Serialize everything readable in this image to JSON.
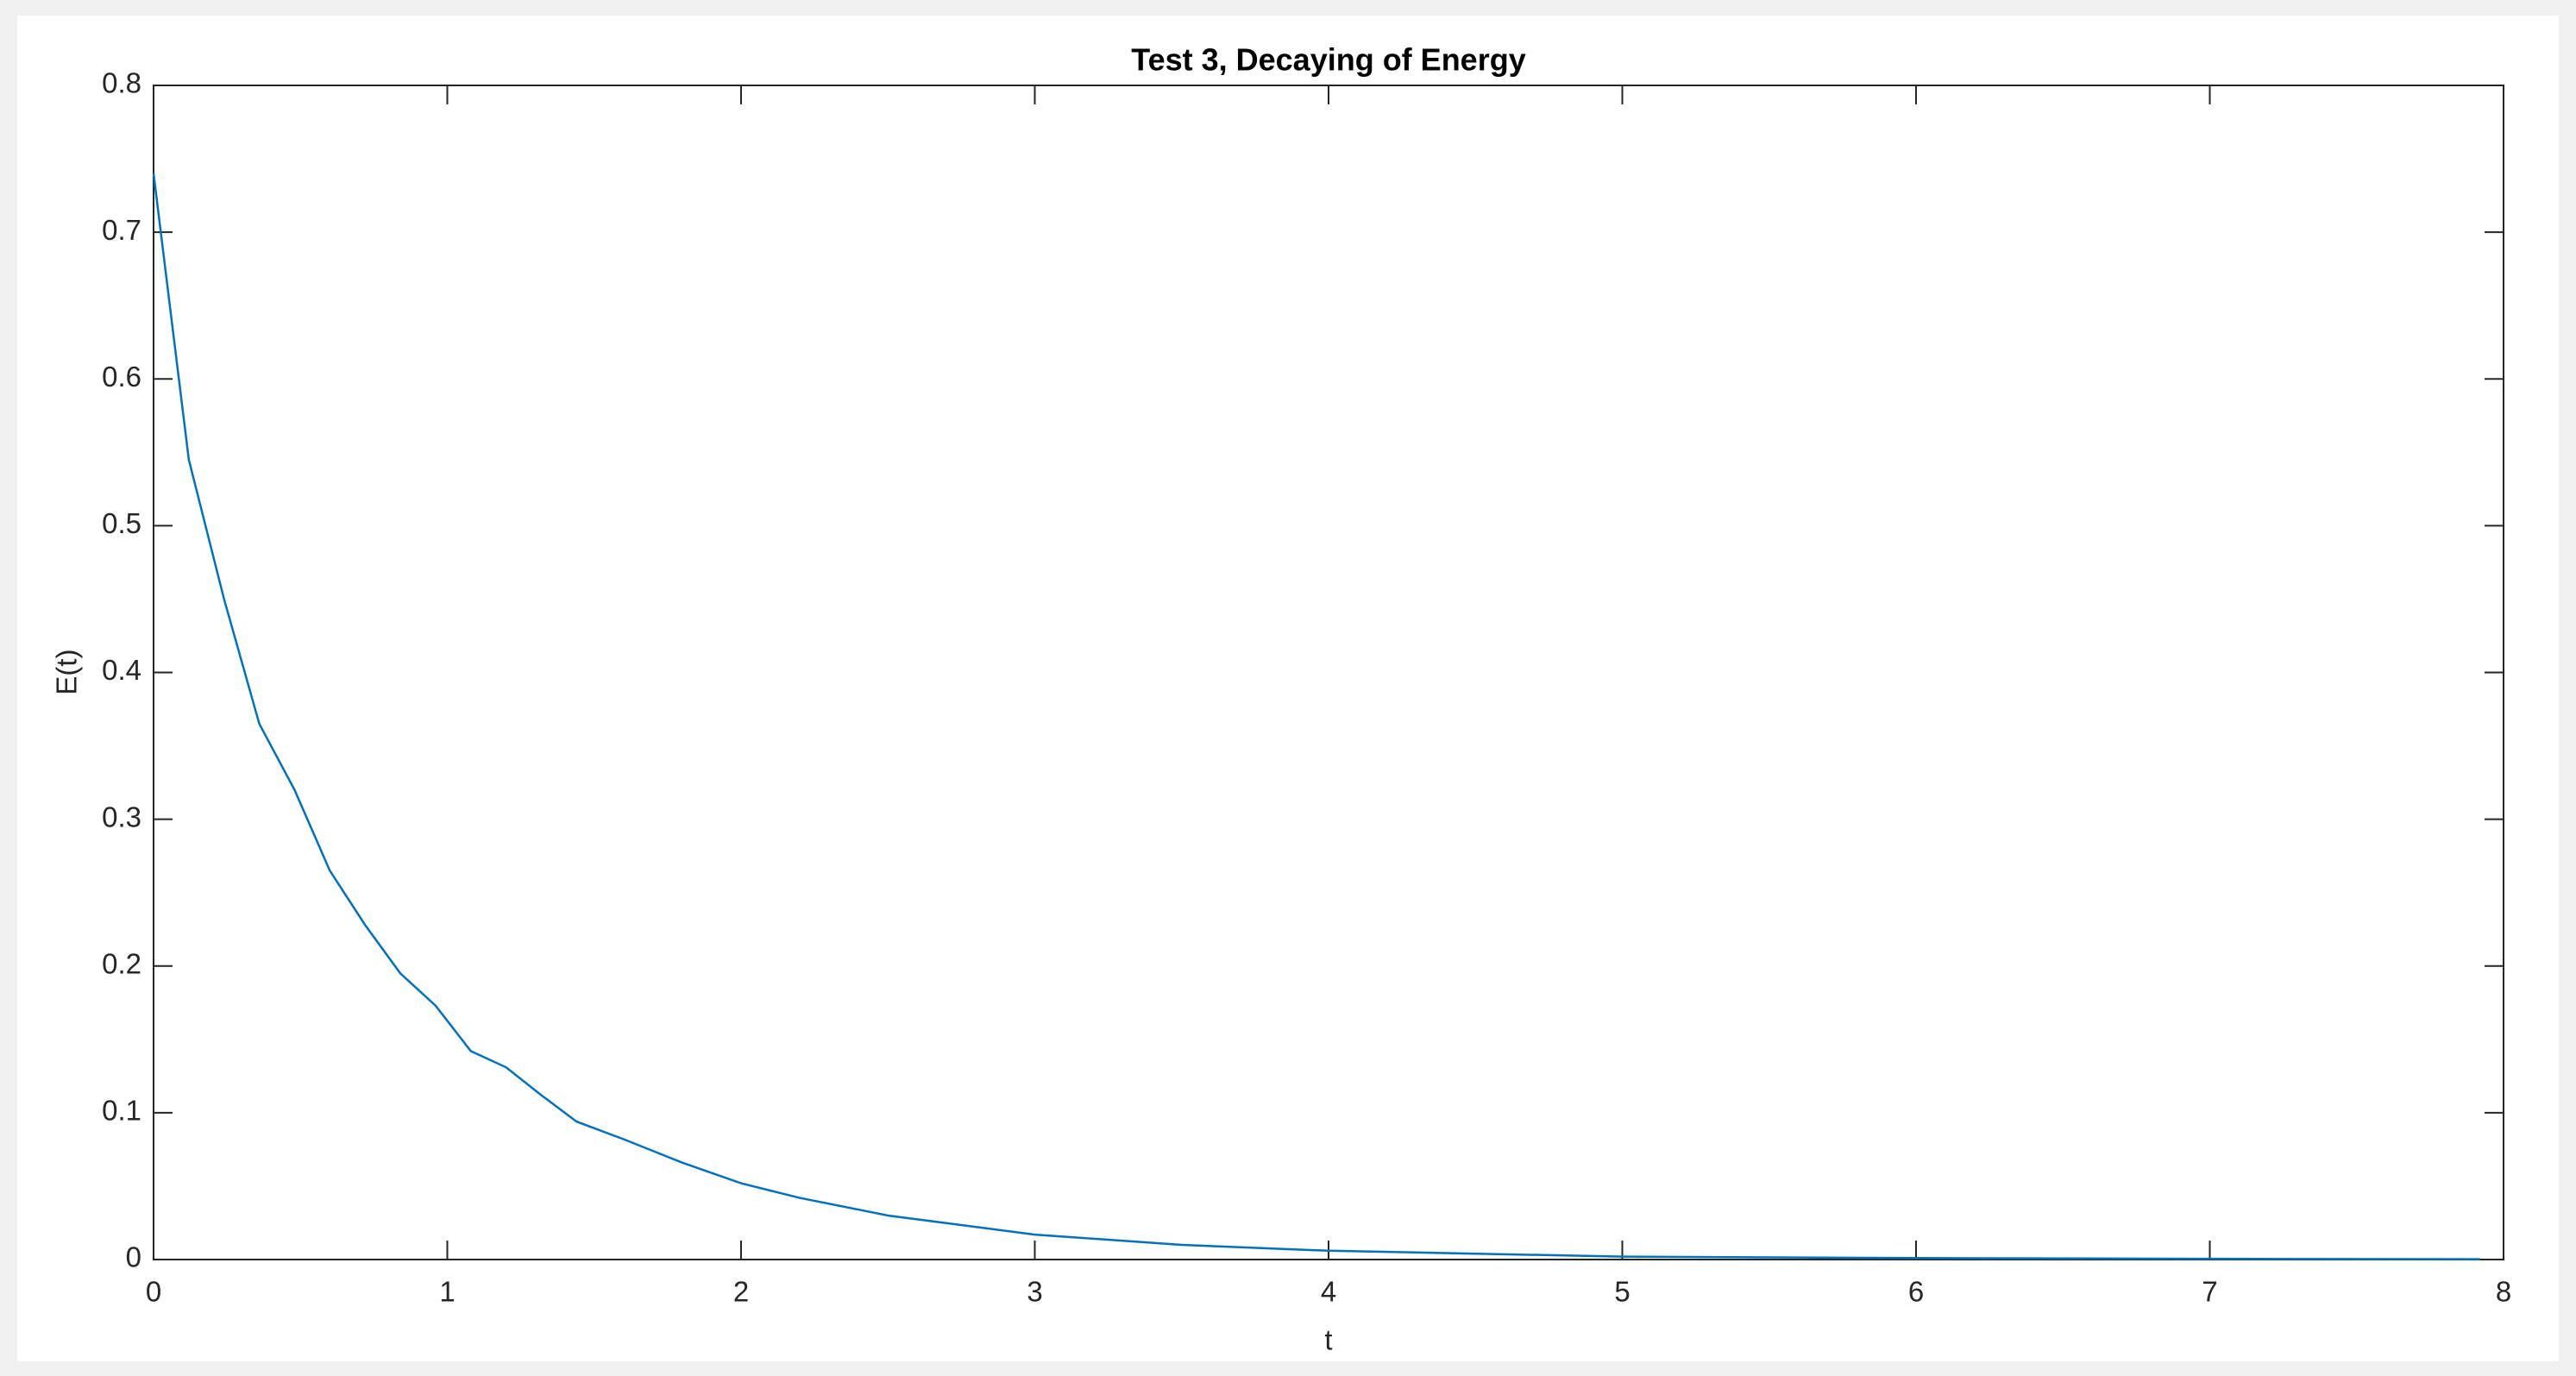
{
  "chart_data": {
    "type": "line",
    "title": "Test 3, Decaying of Energy",
    "xlabel": "t",
    "ylabel": "E(t)",
    "x": [
      0,
      0.12,
      0.24,
      0.36,
      0.48,
      0.6,
      0.72,
      0.84,
      0.96,
      1.08,
      1.2,
      1.32,
      1.44,
      1.6,
      1.8,
      2.0,
      2.2,
      2.5,
      3.0,
      3.5,
      4.0,
      4.5,
      5.0,
      6.0,
      7.0,
      7.92
    ],
    "series": [
      {
        "name": "E(t)",
        "color": "#0072bd",
        "values": [
          0.74,
          0.545,
          0.45,
          0.365,
          0.32,
          0.265,
          0.228,
          0.195,
          0.173,
          0.142,
          0.131,
          0.112,
          0.094,
          0.082,
          0.066,
          0.052,
          0.042,
          0.03,
          0.017,
          0.01,
          0.006,
          0.004,
          0.002,
          0.001,
          0.0005,
          0.0002
        ]
      }
    ],
    "xlim": [
      0,
      8
    ],
    "xticks": [
      0,
      1,
      2,
      3,
      4,
      5,
      6,
      7,
      8
    ],
    "ylim": [
      0,
      0.8
    ],
    "yticks": [
      0,
      0.1,
      0.2,
      0.3,
      0.4,
      0.5,
      0.6,
      0.7,
      0.8
    ],
    "grid": false
  }
}
